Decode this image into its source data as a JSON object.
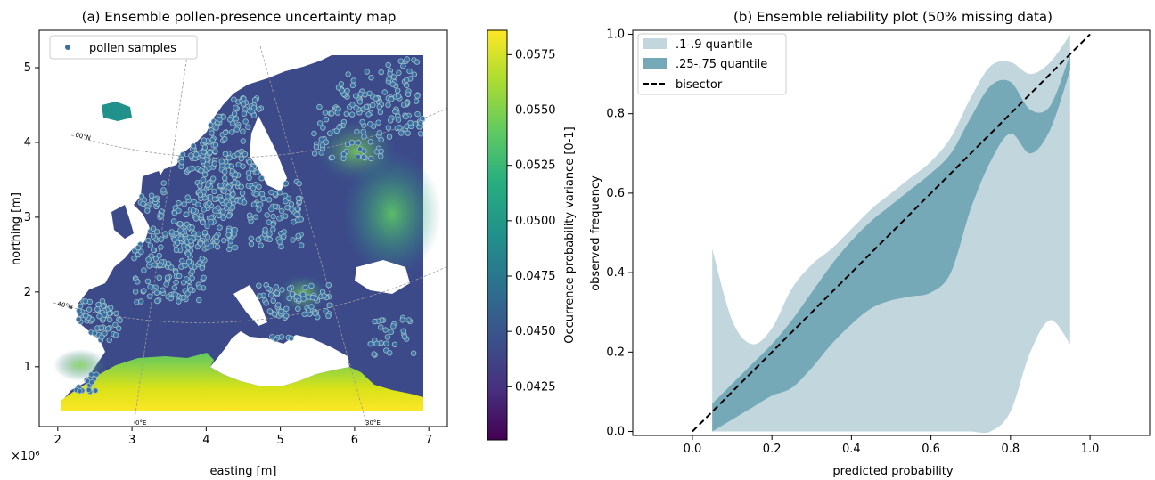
{
  "chart_data": [
    {
      "type": "heatmap",
      "title": "(a) Ensemble pollen-presence uncertainty map",
      "xlabel": "easting [m]",
      "ylabel": "northing [m]",
      "xlim": [
        1.75,
        7.25
      ],
      "ylim": [
        0.2,
        5.5
      ],
      "x_ticks": [
        "2",
        "3",
        "4",
        "5",
        "6",
        "7"
      ],
      "y_ticks": [
        "1",
        "2",
        "3",
        "4",
        "5"
      ],
      "axis_multiplier": "×10⁶",
      "legend": [
        "pollen samples"
      ],
      "legend_position": "top-left",
      "colorbar": {
        "label": "Occurrence probability variance [0-1]",
        "range": [
          0.0401,
          0.0586
        ],
        "ticks": [
          "0.0425",
          "0.0450",
          "0.0475",
          "0.0500",
          "0.0525",
          "0.0550",
          "0.0575"
        ],
        "colormap": "viridis"
      },
      "graticule_labels": [
        "60°N",
        "40°N",
        "0°E",
        "30°E"
      ]
    },
    {
      "type": "area",
      "title": "(b) Ensemble reliability plot (50% missing data)",
      "xlabel": "predicted probability",
      "ylabel": "observed frequency",
      "xlim": [
        -0.15,
        1.15
      ],
      "ylim": [
        -0.01,
        1.01
      ],
      "x_ticks": [
        "0.0",
        "0.2",
        "0.4",
        "0.6",
        "0.8",
        "1.0"
      ],
      "y_ticks": [
        "0.0",
        "0.2",
        "0.4",
        "0.6",
        "0.8",
        "1.0"
      ],
      "legend_position": "top-left",
      "grid": false,
      "x": [
        0.05,
        0.1,
        0.15,
        0.2,
        0.25,
        0.3,
        0.35,
        0.4,
        0.45,
        0.5,
        0.55,
        0.6,
        0.65,
        0.7,
        0.75,
        0.8,
        0.85,
        0.9,
        0.95
      ],
      "series": [
        {
          "name": ".1-.9 quantile",
          "color": "#c2d7dd",
          "upper": [
            0.46,
            0.28,
            0.22,
            0.26,
            0.36,
            0.42,
            0.46,
            0.51,
            0.56,
            0.6,
            0.64,
            0.68,
            0.74,
            0.84,
            0.92,
            0.93,
            0.9,
            0.93,
            1.0
          ],
          "lower": [
            0.0,
            0.0,
            0.0,
            0.0,
            0.0,
            0.0,
            0.0,
            0.0,
            0.0,
            0.0,
            0.0,
            0.0,
            0.0,
            0.0,
            0.0,
            0.05,
            0.2,
            0.28,
            0.22
          ]
        },
        {
          "name": ".25-.75 quantile",
          "color": "#76a9b8",
          "upper": [
            0.07,
            0.12,
            0.17,
            0.22,
            0.28,
            0.35,
            0.42,
            0.48,
            0.53,
            0.57,
            0.61,
            0.65,
            0.7,
            0.79,
            0.87,
            0.88,
            0.81,
            0.82,
            0.95
          ],
          "lower": [
            0.0,
            0.03,
            0.06,
            0.09,
            0.11,
            0.16,
            0.22,
            0.27,
            0.31,
            0.33,
            0.34,
            0.35,
            0.4,
            0.56,
            0.68,
            0.75,
            0.7,
            0.76,
            0.91
          ]
        },
        {
          "name": "bisector",
          "x": [
            0.0,
            1.0
          ],
          "values": [
            0.0,
            1.0
          ]
        }
      ]
    }
  ]
}
